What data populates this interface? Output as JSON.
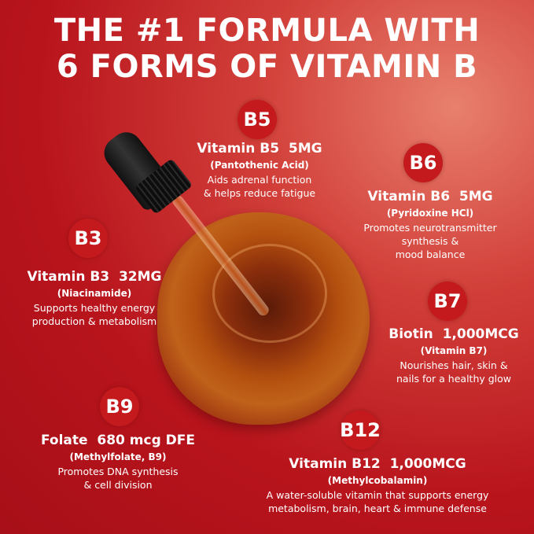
{
  "title": {
    "line1": "THE #1 FORMULA WITH",
    "line2": "6 FORMS OF VITAMIN B"
  },
  "colors": {
    "background": "#b8141c",
    "badge": "#c41a1e",
    "text": "#ffffff"
  },
  "vitamins": [
    {
      "badge": "B5",
      "heading": "Vitamin B5  5MG",
      "subtitle": "(Pantothenic Acid)",
      "desc": [
        "Aids adrenal function",
        "& helps reduce fatigue"
      ]
    },
    {
      "badge": "B6",
      "heading": "Vitamin B6  5MG",
      "subtitle": "(Pyridoxine HCl)",
      "desc": [
        "Promotes neurotransmitter",
        "synthesis &",
        "mood balance"
      ]
    },
    {
      "badge": "B3",
      "heading": "Vitamin B3  32MG",
      "subtitle": "(Niacinamide)",
      "desc": [
        "Supports healthy energy",
        "production & metabolism"
      ]
    },
    {
      "badge": "B7",
      "heading": "Biotin  1,000MCG",
      "subtitle": "(Vitamin B7)",
      "desc": [
        "Nourishes hair, skin &",
        "nails for a healthy glow"
      ]
    },
    {
      "badge": "B9",
      "heading": "Folate  680 mcg DFE",
      "subtitle": "(Methylfolate, B9)",
      "desc": [
        "Promotes DNA synthesis",
        "& cell division"
      ]
    },
    {
      "badge": "B12",
      "heading": "Vitamin B12  1,000MCG",
      "subtitle": "(Methylcobalamin)",
      "desc": [
        "A water-soluble vitamin that supports energy",
        "metabolism, brain, heart & immune defense"
      ]
    }
  ]
}
